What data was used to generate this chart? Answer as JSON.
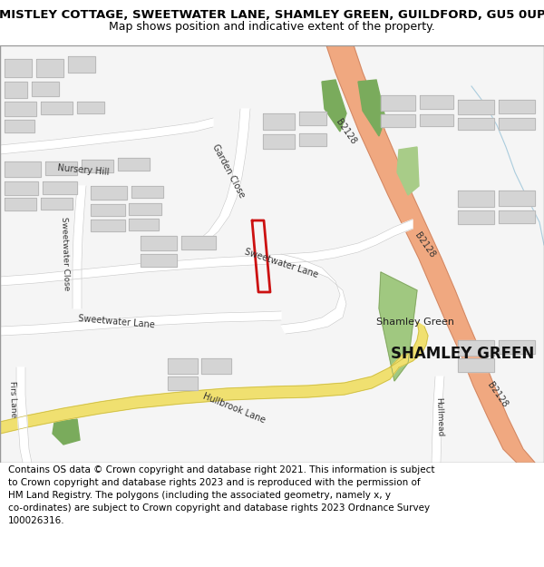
{
  "title_line1": "MISTLEY COTTAGE, SWEETWATER LANE, SHAMLEY GREEN, GUILDFORD, GU5 0UP",
  "title_line2": "Map shows position and indicative extent of the property.",
  "footer_text": "Contains OS data © Crown copyright and database right 2021. This information is subject to Crown copyright and database rights 2023 and is reproduced with the permission of HM Land Registry. The polygons (including the associated geometry, namely x, y co-ordinates) are subject to Crown copyright and database rights 2023 Ordnance Survey 100026316.",
  "bg_color": "#f5f5f5",
  "building_fill": "#d4d4d4",
  "building_edge": "#b0b0b0",
  "road_major_fill": "#f0a880",
  "road_major_edge": "#c88060",
  "road_yellow_fill": "#f0e070",
  "road_yellow_edge": "#c8b840",
  "road_white_fill": "#ffffff",
  "road_white_edge": "#cccccc",
  "green_dark": "#7aab5c",
  "green_light": "#a8cc88",
  "green_village": "#a0c880",
  "property_color": "#cc1111",
  "text_dark": "#222222",
  "text_road": "#333333",
  "title_fs": 9.5,
  "subtitle_fs": 9,
  "footer_fs": 7.5,
  "label_fs": 7
}
